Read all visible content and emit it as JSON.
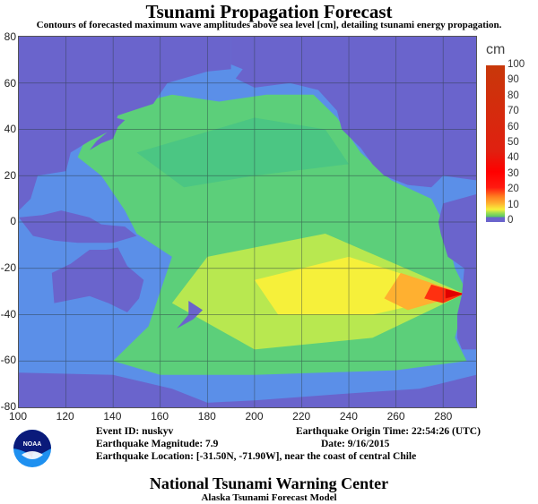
{
  "header": {
    "title": "Tsunami Propagation Forecast",
    "subtitle": "Contours of forecasted maximum wave amplitudes above sea level [cm], detailing tsunami energy propagation."
  },
  "map": {
    "x_ticks": [
      "100",
      "120",
      "140",
      "160",
      "180",
      "200",
      "220",
      "240",
      "260",
      "280"
    ],
    "y_ticks": [
      "80",
      "60",
      "40",
      "20",
      "0",
      "-20",
      "-40",
      "-60",
      "-80"
    ],
    "colors": {
      "land": "#6a64cc",
      "ocean": "#5b8fe8",
      "low": "#5ccf7a",
      "mid": "#f6f03a",
      "high": "#ff8020",
      "peak": "#ff0000"
    }
  },
  "colorbar": {
    "unit": "cm",
    "ticks": [
      "100",
      "90",
      "80",
      "70",
      "60",
      "50",
      "40",
      "30",
      "20",
      "10",
      "0"
    ]
  },
  "event": {
    "id": "Event ID: nuskyv",
    "magnitude": "Earthquake Magnitude: 7.9",
    "location": "Earthquake Location: [-31.50N, -71.90W], near the coast of central Chile",
    "origin_time": "Earthquake Origin Time: 22:54:26 (UTC)",
    "date": "Date: 9/16/2015"
  },
  "logo": {
    "text": "NOAA"
  },
  "footer": {
    "org": "National Tsunami Warning Center",
    "model": "Alaska Tsunami Forecast Model"
  }
}
